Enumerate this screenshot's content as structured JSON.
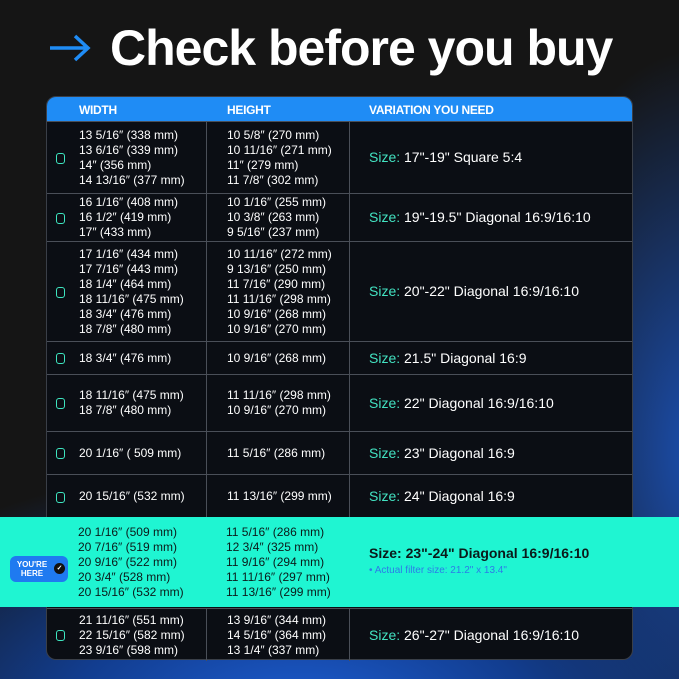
{
  "title": "Check before you buy",
  "icons": {
    "title": "arrow-right-icon",
    "row": "checkbox-icon",
    "selected": "check-circle-icon"
  },
  "colors": {
    "accent": "#1f8cf5",
    "highlight": "#1ff5d2",
    "size_label": "#43e3c2"
  },
  "headers": [
    "WIDTH",
    "HEIGHT",
    "VARIATION YOU NEED"
  ],
  "size_prefix": "Size:",
  "rows": [
    {
      "width": [
        "13 5/16″ (338 mm)",
        "13 6/16″ (339 mm)",
        "14″ (356 mm)",
        "14 13/16″ (377 mm)"
      ],
      "height": [
        "10 5/8″ (270 mm)",
        "10 11/16″ (271 mm)",
        "11″ (279 mm)",
        "11 7/8″ (302 mm)"
      ],
      "size": "17\"-19\" Square 5:4"
    },
    {
      "width": [
        "16 1/16″ (408 mm)",
        "16 1/2″ (419 mm)",
        "17″ (433 mm)"
      ],
      "height": [
        "10 1/16″ (255 mm)",
        "10 3/8″ (263 mm)",
        "9 5/16″ (237 mm)"
      ],
      "size": "19\"-19.5\" Diagonal 16:9/16:10"
    },
    {
      "width": [
        "17 1/16″ (434 mm)",
        "17 7/16″ (443 mm)",
        "18 1/4″ (464 mm)",
        "18 11/16″ (475 mm)",
        "18 3/4″ (476 mm)",
        "18 7/8″ (480 mm)"
      ],
      "height": [
        "10 11/16″ (272 mm)",
        "9 13/16″ (250 mm)",
        "11 7/16″ (290 mm)",
        "11 11/16″ (298 mm)",
        "10 9/16″ (268 mm)",
        "10 9/16″ (270 mm)"
      ],
      "size": "20\"-22\" Diagonal 16:9/16:10"
    },
    {
      "width": [
        "18 3/4″ (476 mm)"
      ],
      "height": [
        "10 9/16″ (268 mm)"
      ],
      "size": "21.5\" Diagonal 16:9"
    },
    {
      "width": [
        "18 11/16″ (475 mm)",
        "18 7/8″ (480 mm)"
      ],
      "height": [
        "11 11/16″ (298 mm)",
        "10 9/16″ (270 mm)"
      ],
      "size": "22\" Diagonal 16:9/16:10"
    },
    {
      "width": [
        "20 1/16″ ( 509 mm)"
      ],
      "height": [
        "11 5/16″ (286 mm)"
      ],
      "size": "23\" Diagonal 16:9"
    },
    {
      "width": [
        "20 15/16″ (532 mm)"
      ],
      "height": [
        "11 13/16″ (299 mm)"
      ],
      "size": "24\" Diagonal 16:9"
    },
    {
      "width": [
        "21 11/16″ (551 mm)",
        "22 15/16″ (582 mm)",
        "23 9/16″ (598 mm)"
      ],
      "height": [
        "13 9/16″ (344 mm)",
        "14 5/16″ (364 mm)",
        "13 1/4″ (337 mm)"
      ],
      "size": "26\"-27\" Diagonal 16:9/16:10"
    }
  ],
  "selected": {
    "badge": "YOU'RE HERE",
    "width": [
      "20 1/16″ (509 mm)",
      "20 7/16″ (519 mm)",
      "20 9/16″ (522 mm)",
      "20 3/4″ (528 mm)",
      "20 15/16″ (532 mm)"
    ],
    "height": [
      "11 5/16″ (286 mm)",
      "12 3/4″ (325 mm)",
      "11 9/16″ (294 mm)",
      "11 11/16″ (297 mm)",
      "11 13/16″ (299 mm)"
    ],
    "size": "Size: 23\"-24\" Diagonal 16:9/16:10",
    "note": "• Actual filter size: 21.2\" x 13.4\""
  }
}
